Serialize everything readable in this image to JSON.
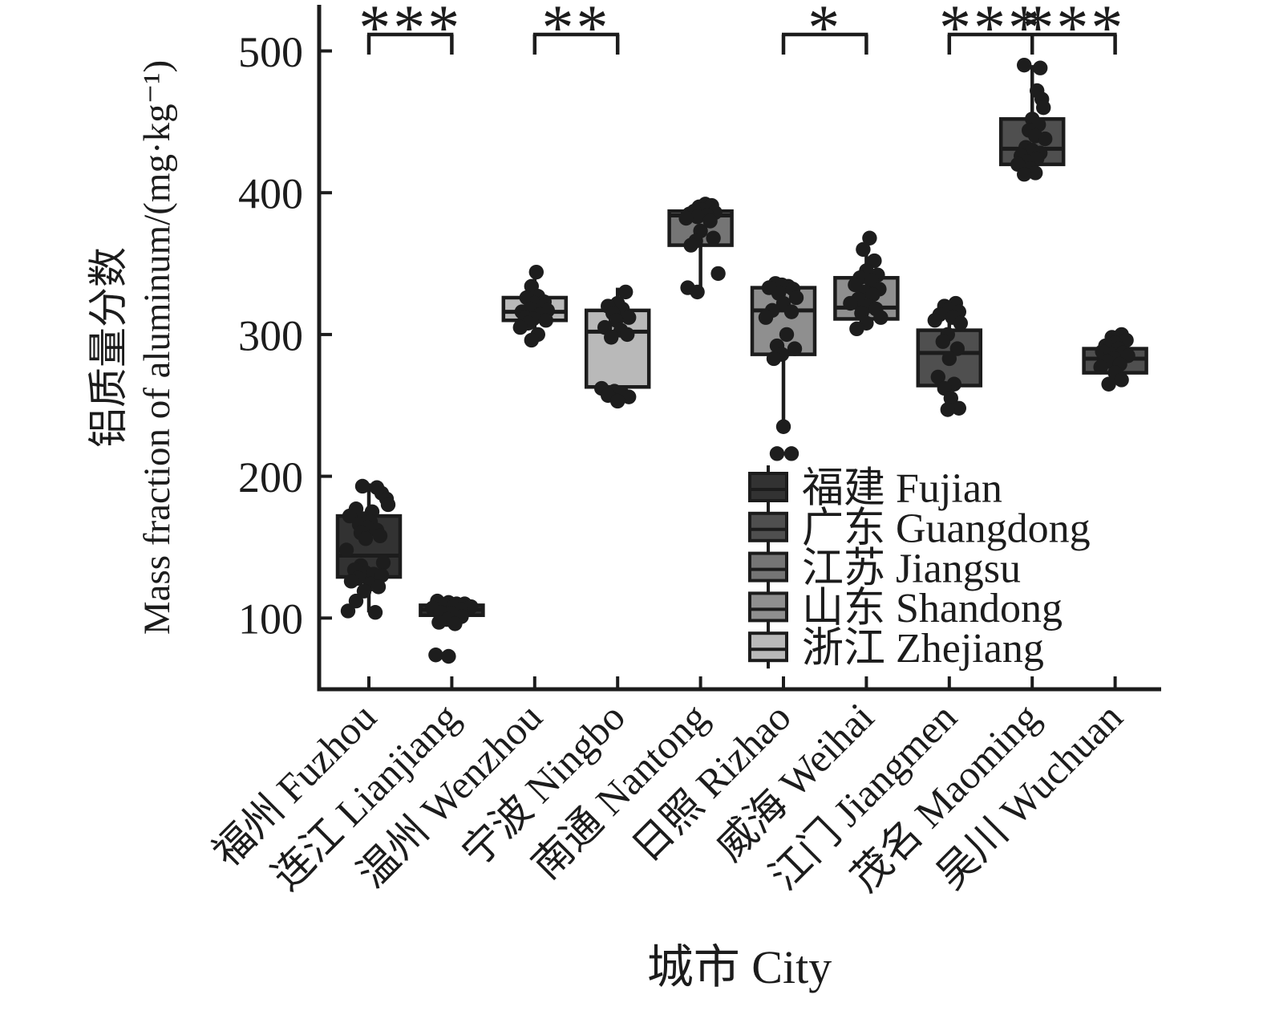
{
  "figure": {
    "background": "#ffffff",
    "ink_color": "#1c1c1c"
  },
  "chart_data": {
    "type": "boxplot-with-points",
    "ylabel_cn": "铝质量分数",
    "ylabel_en": "Mass fraction of aluminum/(mg·kg⁻¹)",
    "xlabel": "城市 City",
    "y_ticks": [
      100,
      200,
      300,
      400,
      500
    ],
    "ylim": [
      50,
      530
    ],
    "grid": false,
    "legend_position": "inside-lower-right",
    "provinces": [
      {
        "id": "fujian",
        "cn": "福建",
        "en": "Fujian",
        "color": "#323232"
      },
      {
        "id": "guangdong",
        "cn": "广东",
        "en": "Guangdong",
        "color": "#4f4f4f"
      },
      {
        "id": "jiangsu",
        "cn": "江苏",
        "en": "Jiangsu",
        "color": "#757575"
      },
      {
        "id": "shandong",
        "cn": "山东",
        "en": "Shandong",
        "color": "#8f8f8f"
      },
      {
        "id": "zhejiang",
        "cn": "浙江",
        "en": "Zhejiang",
        "color": "#b9b9b9"
      }
    ],
    "cities": [
      {
        "cn": "福州",
        "en": "Fuzhou",
        "province": "fujian",
        "box": {
          "low": 104,
          "q1": 129,
          "median": 144,
          "q3": 172,
          "high": 195
        },
        "points": [
          [
            -8,
            193
          ],
          [
            10,
            192
          ],
          [
            16,
            188
          ],
          [
            22,
            184
          ],
          [
            24,
            180
          ],
          [
            -16,
            177
          ],
          [
            4,
            175
          ],
          [
            -24,
            172
          ],
          [
            -6,
            170
          ],
          [
            2,
            168
          ],
          [
            -12,
            166
          ],
          [
            -2,
            164
          ],
          [
            10,
            162
          ],
          [
            -10,
            160
          ],
          [
            14,
            158
          ],
          [
            -4,
            156
          ],
          [
            -28,
            148
          ],
          [
            18,
            139
          ],
          [
            -10,
            137
          ],
          [
            -18,
            134
          ],
          [
            -4,
            132
          ],
          [
            6,
            131
          ],
          [
            16,
            130
          ],
          [
            -14,
            128
          ],
          [
            -22,
            126
          ],
          [
            2,
            124
          ],
          [
            12,
            122
          ],
          [
            -6,
            119
          ],
          [
            -16,
            112
          ],
          [
            -26,
            105
          ],
          [
            8,
            104
          ]
        ]
      },
      {
        "cn": "连江",
        "en": "Lianjiang",
        "province": "fujian",
        "box": {
          "low": 96,
          "q1": 102,
          "median": 106,
          "q3": 109,
          "high": 111
        },
        "points": [
          [
            -18,
            112
          ],
          [
            -4,
            111
          ],
          [
            6,
            110
          ],
          [
            16,
            110
          ],
          [
            -10,
            109
          ],
          [
            2,
            108
          ],
          [
            24,
            108
          ],
          [
            -24,
            107
          ],
          [
            10,
            106
          ],
          [
            -14,
            104
          ],
          [
            0,
            103
          ],
          [
            12,
            101
          ],
          [
            -6,
            99
          ],
          [
            -16,
            97
          ],
          [
            4,
            96
          ],
          [
            -20,
            74
          ],
          [
            -4,
            73
          ]
        ]
      },
      {
        "cn": "温州",
        "en": "Wenzhou",
        "province": "zhejiang",
        "box": {
          "low": 296,
          "q1": 310,
          "median": 316,
          "q3": 326,
          "high": 344
        },
        "points": [
          [
            2,
            344
          ],
          [
            -4,
            334
          ],
          [
            4,
            327
          ],
          [
            -10,
            326
          ],
          [
            12,
            323
          ],
          [
            0,
            322
          ],
          [
            10,
            320
          ],
          [
            -6,
            318
          ],
          [
            16,
            317
          ],
          [
            -16,
            316
          ],
          [
            6,
            314
          ],
          [
            -12,
            312
          ],
          [
            -2,
            311
          ],
          [
            14,
            310
          ],
          [
            -8,
            308
          ],
          [
            -18,
            305
          ],
          [
            4,
            300
          ],
          [
            -4,
            296
          ]
        ]
      },
      {
        "cn": "宁波",
        "en": "Ningbo",
        "province": "zhejiang",
        "box": {
          "low": 255,
          "q1": 263,
          "median": 302,
          "q3": 317,
          "high": 333
        },
        "points": [
          [
            10,
            330
          ],
          [
            0,
            322
          ],
          [
            -12,
            320
          ],
          [
            6,
            318
          ],
          [
            -6,
            315
          ],
          [
            14,
            312
          ],
          [
            -2,
            310
          ],
          [
            -16,
            305
          ],
          [
            4,
            303
          ],
          [
            12,
            300
          ],
          [
            -8,
            298
          ],
          [
            -20,
            262
          ],
          [
            -4,
            260
          ],
          [
            6,
            258
          ],
          [
            -12,
            257
          ],
          [
            14,
            256
          ],
          [
            0,
            253
          ]
        ]
      },
      {
        "cn": "南通",
        "en": "Nantong",
        "province": "jiangsu",
        "box": {
          "low": 330,
          "q1": 363,
          "median": 384,
          "q3": 387,
          "high": 392
        },
        "points": [
          [
            6,
            392
          ],
          [
            14,
            391
          ],
          [
            -2,
            390
          ],
          [
            10,
            389
          ],
          [
            2,
            388
          ],
          [
            -8,
            387
          ],
          [
            18,
            386
          ],
          [
            -14,
            385
          ],
          [
            8,
            384
          ],
          [
            -4,
            383
          ],
          [
            -18,
            382
          ],
          [
            12,
            380
          ],
          [
            0,
            373
          ],
          [
            16,
            368
          ],
          [
            -6,
            366
          ],
          [
            -12,
            363
          ],
          [
            22,
            343
          ],
          [
            -16,
            333
          ],
          [
            -4,
            330
          ]
        ]
      },
      {
        "cn": "日照",
        "en": "Rizhao",
        "province": "shandong",
        "box": {
          "low": 237,
          "q1": 286,
          "median": 317,
          "q3": 333,
          "high": 336
        },
        "points": [
          [
            -10,
            336
          ],
          [
            -2,
            335
          ],
          [
            6,
            334
          ],
          [
            -18,
            333
          ],
          [
            12,
            332
          ],
          [
            -6,
            329
          ],
          [
            16,
            326
          ],
          [
            0,
            322
          ],
          [
            -14,
            317
          ],
          [
            10,
            316
          ],
          [
            -22,
            312
          ],
          [
            4,
            300
          ],
          [
            -8,
            292
          ],
          [
            14,
            290
          ],
          [
            -2,
            286
          ],
          [
            -12,
            283
          ],
          [
            0,
            235
          ],
          [
            -8,
            216
          ],
          [
            10,
            216
          ]
        ]
      },
      {
        "cn": "威海",
        "en": "Weihai",
        "province": "shandong",
        "box": {
          "low": 304,
          "q1": 311,
          "median": 319,
          "q3": 340,
          "high": 367
        },
        "points": [
          [
            4,
            368
          ],
          [
            -4,
            360
          ],
          [
            10,
            352
          ],
          [
            0,
            345
          ],
          [
            14,
            342
          ],
          [
            -8,
            340
          ],
          [
            6,
            338
          ],
          [
            -14,
            335
          ],
          [
            16,
            332
          ],
          [
            -2,
            330
          ],
          [
            8,
            328
          ],
          [
            -10,
            325
          ],
          [
            -20,
            322
          ],
          [
            2,
            320
          ],
          [
            12,
            318
          ],
          [
            -6,
            315
          ],
          [
            18,
            312
          ],
          [
            0,
            308
          ],
          [
            -12,
            304
          ]
        ]
      },
      {
        "cn": "江门",
        "en": "Jiangmen",
        "province": "guangdong",
        "box": {
          "low": 248,
          "q1": 264,
          "median": 287,
          "q3": 303,
          "high": 320
        },
        "points": [
          [
            8,
            322
          ],
          [
            -6,
            320
          ],
          [
            0,
            318
          ],
          [
            12,
            316
          ],
          [
            -12,
            314
          ],
          [
            4,
            312
          ],
          [
            -18,
            310
          ],
          [
            14,
            308
          ],
          [
            -2,
            300
          ],
          [
            -8,
            295
          ],
          [
            10,
            290
          ],
          [
            0,
            283
          ],
          [
            -14,
            270
          ],
          [
            6,
            265
          ],
          [
            -6,
            262
          ],
          [
            2,
            255
          ],
          [
            12,
            248
          ],
          [
            -2,
            247
          ]
        ]
      },
      {
        "cn": "茂名",
        "en": "Maoming",
        "province": "guangdong",
        "box": {
          "low": 414,
          "q1": 420,
          "median": 431,
          "q3": 452,
          "high": 490
        },
        "points": [
          [
            -10,
            490
          ],
          [
            10,
            488
          ],
          [
            6,
            472
          ],
          [
            12,
            466
          ],
          [
            14,
            460
          ],
          [
            0,
            452
          ],
          [
            8,
            448
          ],
          [
            -4,
            444
          ],
          [
            4,
            440
          ],
          [
            16,
            438
          ],
          [
            -8,
            432
          ],
          [
            0,
            430
          ],
          [
            10,
            428
          ],
          [
            -14,
            426
          ],
          [
            6,
            424
          ],
          [
            -6,
            422
          ],
          [
            -18,
            420
          ],
          [
            -2,
            417
          ],
          [
            4,
            414
          ],
          [
            -10,
            413
          ]
        ]
      },
      {
        "cn": "吴川",
        "en": "Wuchuan",
        "province": "guangdong",
        "box": {
          "low": 267,
          "q1": 273,
          "median": 283,
          "q3": 290,
          "high": 296
        },
        "points": [
          [
            8,
            300
          ],
          [
            -4,
            298
          ],
          [
            14,
            296
          ],
          [
            0,
            294
          ],
          [
            -12,
            292
          ],
          [
            4,
            290
          ],
          [
            -16,
            288
          ],
          [
            10,
            287
          ],
          [
            -6,
            286
          ],
          [
            16,
            285
          ],
          [
            -2,
            283
          ],
          [
            -10,
            281
          ],
          [
            6,
            279
          ],
          [
            -18,
            277
          ],
          [
            0,
            273
          ],
          [
            8,
            268
          ],
          [
            -8,
            265
          ]
        ]
      }
    ],
    "significance": [
      {
        "left": 0,
        "right": 1,
        "mid": null,
        "stars": [
          "***"
        ]
      },
      {
        "left": 2,
        "right": 3,
        "mid": null,
        "stars": [
          "**"
        ]
      },
      {
        "left": 5,
        "right": 6,
        "mid": null,
        "stars": [
          "*"
        ]
      },
      {
        "left": 7,
        "right": 9,
        "mid": 8,
        "stars": [
          "***",
          "***"
        ]
      }
    ]
  }
}
